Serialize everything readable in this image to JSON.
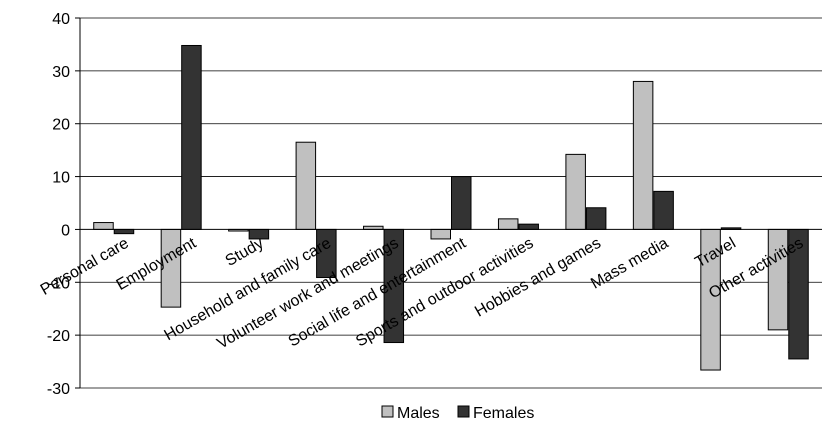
{
  "chart_data": {
    "type": "bar",
    "title": "",
    "xlabel": "",
    "ylabel": "",
    "ylim": [
      -30,
      40
    ],
    "yticks": [
      -30,
      -20,
      -10,
      0,
      10,
      20,
      30,
      40
    ],
    "grid": true,
    "legend_position": "bottom",
    "categories": [
      "Personal care",
      "Employment",
      "Study",
      "Household and family care",
      "Volunteer work and meetings",
      "Social life and entertainment",
      "Sports and outdoor activities",
      "Hobbies and games",
      "Mass media",
      "Travel",
      "Other activities"
    ],
    "series": [
      {
        "name": "Males",
        "color": "#c0c0c0",
        "values": [
          1.3,
          -14.7,
          -0.3,
          16.5,
          0.6,
          -1.8,
          2.0,
          14.2,
          28.0,
          -26.6,
          -19.0
        ]
      },
      {
        "name": "Females",
        "color": "#333333",
        "values": [
          -0.8,
          34.8,
          -1.8,
          -9.1,
          -21.4,
          10.0,
          1.0,
          4.1,
          7.2,
          0.3,
          -24.5
        ]
      }
    ]
  }
}
